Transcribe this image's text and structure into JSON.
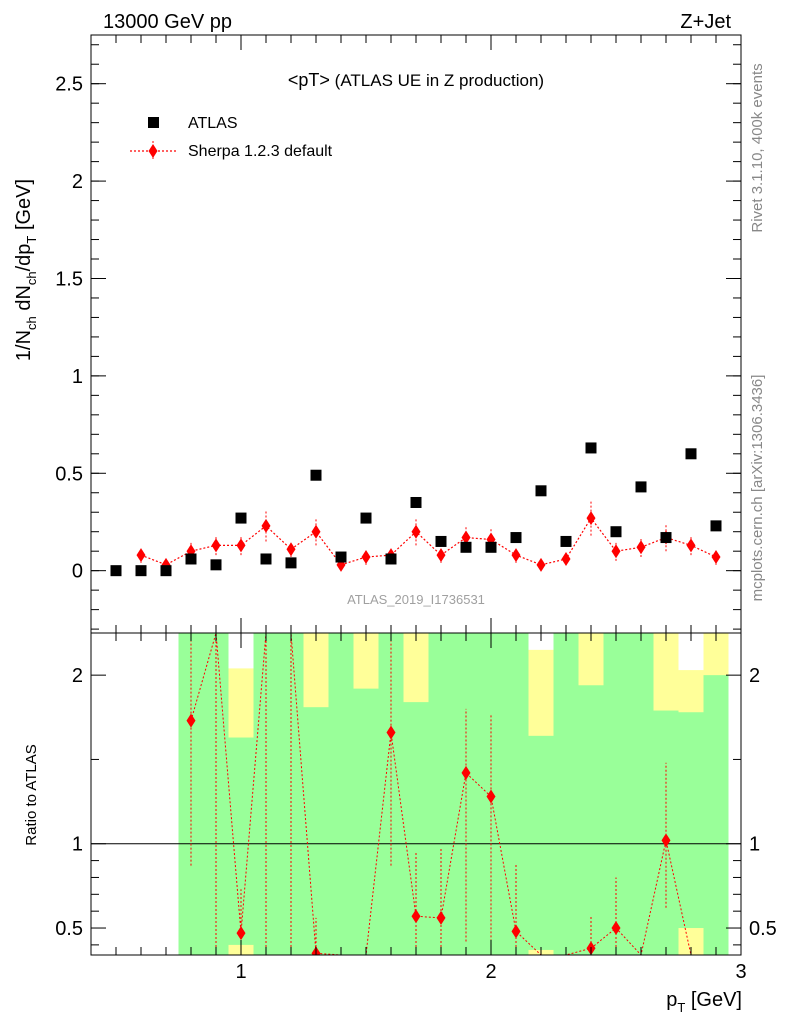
{
  "header": {
    "left": "13000 GeV pp",
    "right": "Z+Jet"
  },
  "side_labels": {
    "rivet": "Rivet 3.1.10,  400k events",
    "mcplots": "mcplots.cern.ch [arXiv:1306.3436]"
  },
  "chart_data": [
    {
      "type": "scatter",
      "title": "<pT> (ATLAS UE in Z production)",
      "title_main": "<pT>",
      "title_sub": "(ATLAS UE in Z production)",
      "watermark": "ATLAS_2019_I1736531",
      "ylabel": "1/N_ch dN_ch/dp_T [GeV]",
      "xlim": [
        0.4,
        3.0
      ],
      "ylim": [
        -0.32,
        2.75
      ],
      "yticks": [
        "0",
        "0.5",
        "1",
        "1.5",
        "2",
        "2.5"
      ],
      "legend_position": "top-left",
      "x": [
        0.5,
        0.6,
        0.7,
        0.8,
        0.9,
        1.0,
        1.1,
        1.2,
        1.3,
        1.4,
        1.5,
        1.6,
        1.7,
        1.8,
        1.9,
        2.0,
        2.1,
        2.2,
        2.3,
        2.4,
        2.5,
        2.6,
        2.7,
        2.8,
        2.9
      ],
      "series": [
        {
          "name": "ATLAS",
          "color": "#000000",
          "marker": "square",
          "values": [
            0.0,
            0.0,
            0.0,
            0.06,
            0.03,
            0.27,
            0.06,
            0.04,
            0.49,
            0.07,
            0.27,
            0.06,
            0.35,
            0.15,
            0.12,
            0.12,
            0.17,
            0.41,
            0.15,
            0.63,
            0.2,
            0.43,
            0.17,
            0.6,
            0.23
          ]
        },
        {
          "name": "Sherpa 1.2.3 default",
          "color": "#ff0000",
          "marker": "diamond",
          "values": [
            null,
            0.08,
            0.03,
            0.1,
            0.13,
            0.13,
            0.23,
            0.11,
            0.2,
            0.03,
            0.07,
            0.08,
            0.2,
            0.08,
            0.17,
            0.16,
            0.08,
            0.03,
            0.06,
            0.27,
            0.1,
            0.12,
            0.17,
            0.13,
            0.07
          ],
          "errors": [
            null,
            0.04,
            0.02,
            0.05,
            0.05,
            0.05,
            0.08,
            0.04,
            0.07,
            0.02,
            0.04,
            0.04,
            0.07,
            0.04,
            0.06,
            0.06,
            0.04,
            0.02,
            0.03,
            0.09,
            0.05,
            0.05,
            0.07,
            0.05,
            0.04
          ]
        }
      ]
    },
    {
      "type": "line",
      "ylabel": "Ratio to ATLAS",
      "xlabel": "p_T [GeV]",
      "xlim": [
        0.4,
        3.0
      ],
      "ylim": [
        0.34,
        2.25
      ],
      "xticks": [
        "1",
        "2",
        "3"
      ],
      "yticks": [
        "0.5",
        "1",
        "2"
      ],
      "reference_line": 1,
      "bands": {
        "x_low": [
          0.75,
          0.85,
          0.95,
          1.05,
          1.15,
          1.25,
          1.35,
          1.45,
          1.55,
          1.65,
          1.75,
          1.85,
          1.95,
          2.05,
          2.15,
          2.25,
          2.35,
          2.45,
          2.55,
          2.65,
          2.75,
          2.85
        ],
        "x_high": [
          0.85,
          0.95,
          1.05,
          1.15,
          1.25,
          1.35,
          1.45,
          1.55,
          1.65,
          1.75,
          1.85,
          1.95,
          2.05,
          2.15,
          2.25,
          2.35,
          2.45,
          2.55,
          2.65,
          2.75,
          2.85,
          2.95
        ],
        "stat_low": [
          0.34,
          0.34,
          0.4,
          0.34,
          0.34,
          0.34,
          0.34,
          0.34,
          0.34,
          0.34,
          0.34,
          0.34,
          0.34,
          0.34,
          0.37,
          0.34,
          0.34,
          0.34,
          0.34,
          0.34,
          0.5,
          0.34
        ],
        "stat_high": [
          2.25,
          2.25,
          2.25,
          2.25,
          2.25,
          2.25,
          2.25,
          2.25,
          2.25,
          2.25,
          2.25,
          2.25,
          2.25,
          2.25,
          2.25,
          2.25,
          2.25,
          2.25,
          2.25,
          2.25,
          2.25,
          2.25
        ],
        "inner_low": [
          0.34,
          0.34,
          0.34,
          0.34,
          0.34,
          0.34,
          0.34,
          0.34,
          0.34,
          0.34,
          0.34,
          0.34,
          0.34,
          0.34,
          0.34,
          0.34,
          0.34,
          0.34,
          0.34,
          0.34,
          0.34,
          0.34
        ],
        "inner_high": [
          2.25,
          2.25,
          1.63,
          2.25,
          2.25,
          1.81,
          2.25,
          1.92,
          2.25,
          1.84,
          2.25,
          2.25,
          2.25,
          2.25,
          1.64,
          2.25,
          1.94,
          2.25,
          2.25,
          1.79,
          1.78,
          2.0
        ],
        "top_low": [
          2.25,
          2.25,
          2.04,
          2.25,
          2.25,
          2.25,
          2.25,
          2.25,
          2.25,
          2.25,
          2.25,
          2.25,
          2.25,
          2.25,
          2.15,
          2.25,
          2.25,
          2.25,
          2.25,
          2.25,
          2.03,
          2.25
        ],
        "colors": {
          "inner": "#99ff99",
          "outer": "#ffff99"
        }
      },
      "series": [
        {
          "name": "Sherpa 1.2.3 default",
          "color": "#ff0000",
          "x": [
            0.8,
            0.9,
            1.0,
            1.1,
            1.2,
            1.3,
            1.4,
            1.5,
            1.6,
            1.7,
            1.8,
            1.9,
            2.0,
            2.1,
            2.2,
            2.3,
            2.4,
            2.5,
            2.6,
            2.7,
            2.8,
            2.9
          ],
          "values": [
            1.73,
            3.6,
            0.47,
            3.8,
            2.7,
            0.35,
            0.2,
            0.26,
            1.66,
            0.57,
            0.56,
            1.42,
            1.28,
            0.48,
            0.18,
            0.2,
            0.38,
            0.5,
            0.24,
            1.02,
            0.22,
            0.3
          ],
          "err_low": [
            0.87,
            0.3,
            0.3,
            0.3,
            0.3,
            0.2,
            0.2,
            0.2,
            0.87,
            0.3,
            0.3,
            0.42,
            0.35,
            0.3,
            0.2,
            0.2,
            0.3,
            0.3,
            0.2,
            0.62,
            0.2,
            0.2
          ],
          "err_high": [
            2.25,
            2.25,
            0.73,
            2.25,
            2.25,
            0.56,
            0.34,
            0.34,
            2.25,
            0.95,
            0.97,
            1.8,
            1.77,
            0.88,
            0.34,
            0.34,
            0.57,
            0.8,
            0.34,
            1.48,
            0.34,
            0.34
          ]
        }
      ]
    }
  ]
}
